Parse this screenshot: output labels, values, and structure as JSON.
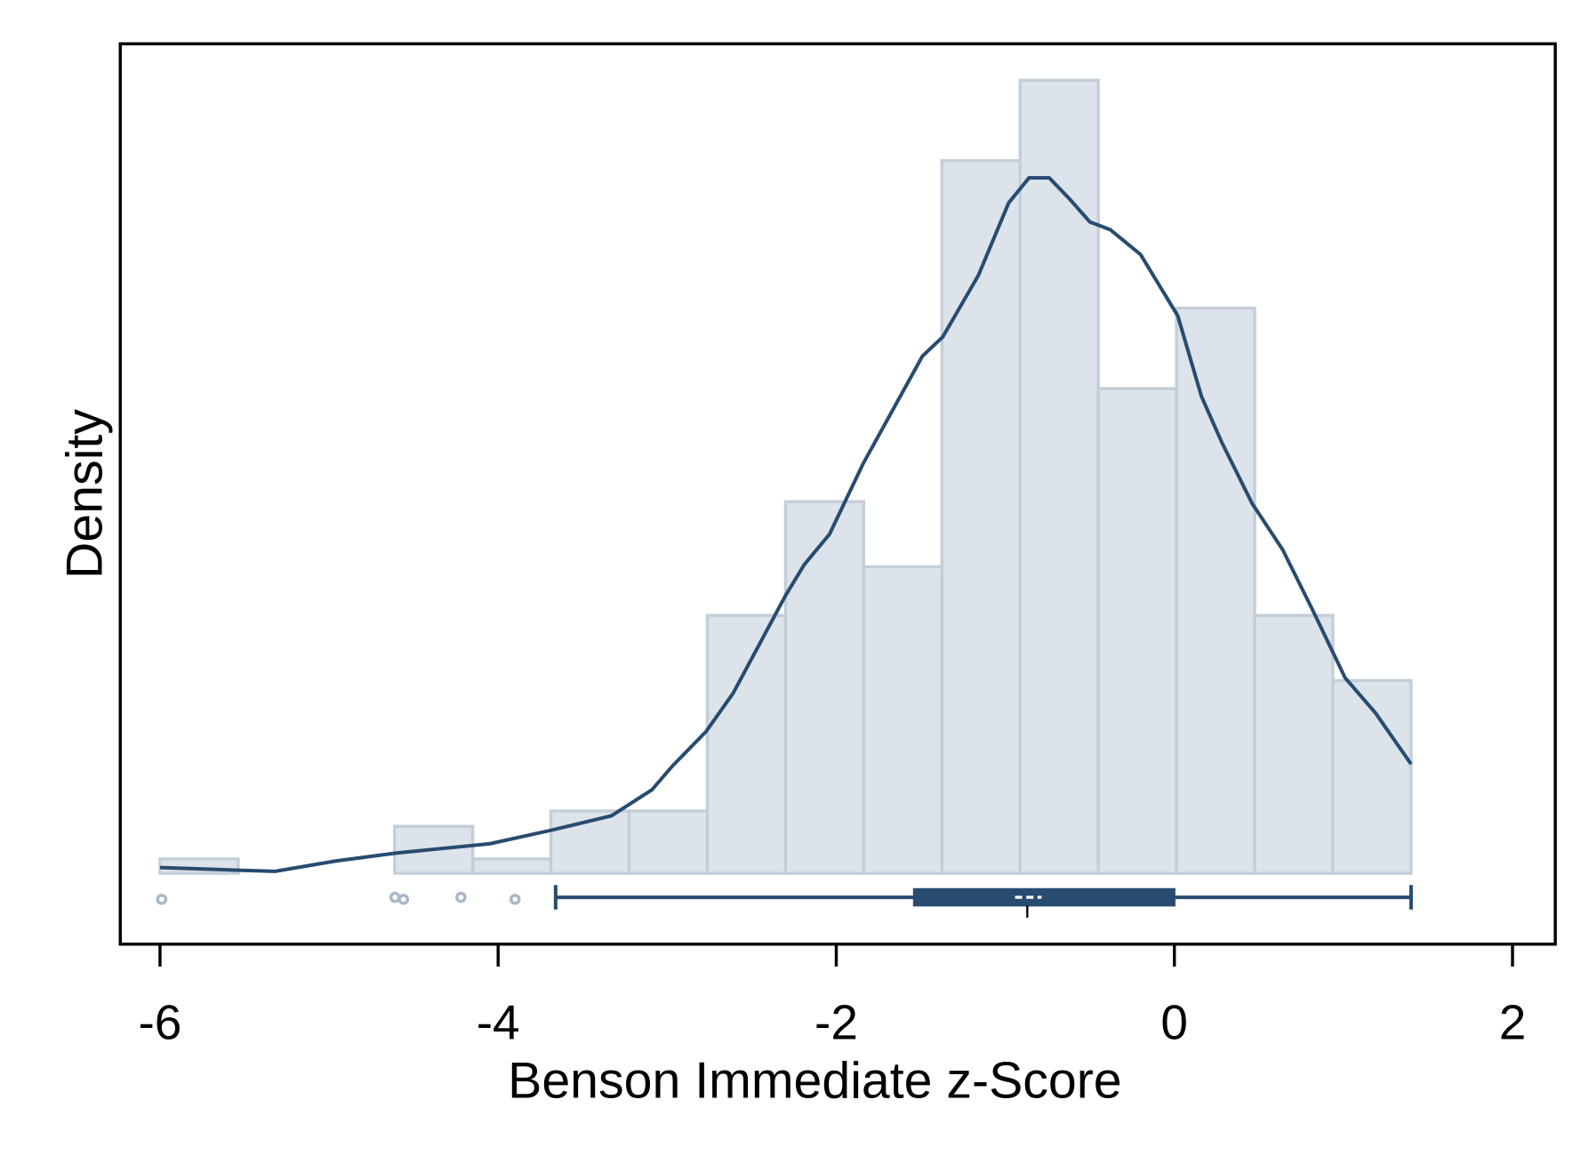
{
  "chart_data": {
    "type": "histogram",
    "x_label": "Benson Immediate z-Score",
    "y_label": "Density",
    "bins": [
      -6,
      -5.5375,
      -5.075,
      -4.6125,
      -4.15,
      -3.6875,
      -3.225,
      -2.7625,
      -2.3,
      -1.8375,
      -1.375,
      -0.9125,
      -0.45,
      0.0125,
      0.475,
      0.9375,
      1.4
    ],
    "values": [
      0.0075,
      0,
      0,
      0.0245,
      0.0075,
      0.0325,
      0.0325,
      0.1346,
      0.194,
      0.16,
      0.372,
      0.414,
      0.253,
      0.295,
      0.1346,
      0.1006
    ],
    "color": "#dce3ea",
    "edge_color": "#c3ced8",
    "density": {
      "color": "#284b70",
      "x": [
        -6,
        -5.54,
        -5.32,
        -4.96,
        -4.6,
        -4.05,
        -3.69,
        -3.33,
        -3.09,
        -2.97,
        -2.77,
        -2.61,
        -2.3,
        -2.19,
        -2.04,
        -1.84,
        -1.59,
        -1.49,
        -1.37,
        -1.16,
        -0.98,
        -0.86,
        -0.74,
        -0.62,
        -0.5,
        -0.38,
        -0.2,
        0.02,
        0.16,
        0.28,
        0.46,
        0.64,
        0.82,
        1.01,
        1.19,
        1.4
      ],
      "y": [
        0.003,
        0.0016,
        0.001,
        0.0064,
        0.0106,
        0.0154,
        0.0224,
        0.03,
        0.0436,
        0.0559,
        0.074,
        0.094,
        0.145,
        0.161,
        0.177,
        0.214,
        0.254,
        0.27,
        0.28,
        0.312,
        0.35,
        0.363,
        0.363,
        0.352,
        0.34,
        0.336,
        0.323,
        0.291,
        0.249,
        0.225,
        0.193,
        0.169,
        0.137,
        0.102,
        0.0836,
        0.057
      ]
    },
    "boxplot": {
      "color": "#284b70",
      "outlier_color": "#a9b7c6",
      "whisker_low": -3.66,
      "q1": -1.54,
      "median": -0.87,
      "q3": 0.0,
      "whisker_high": 1.4,
      "outliers": [
        -5.99,
        -4.61,
        -4.56,
        -4.22,
        -3.9
      ]
    },
    "xlim": [
      -6.235,
      2.253
    ],
    "xticks": [
      -6,
      -4,
      -2,
      0,
      2
    ],
    "ylim": [
      -0.037,
      0.433
    ]
  }
}
